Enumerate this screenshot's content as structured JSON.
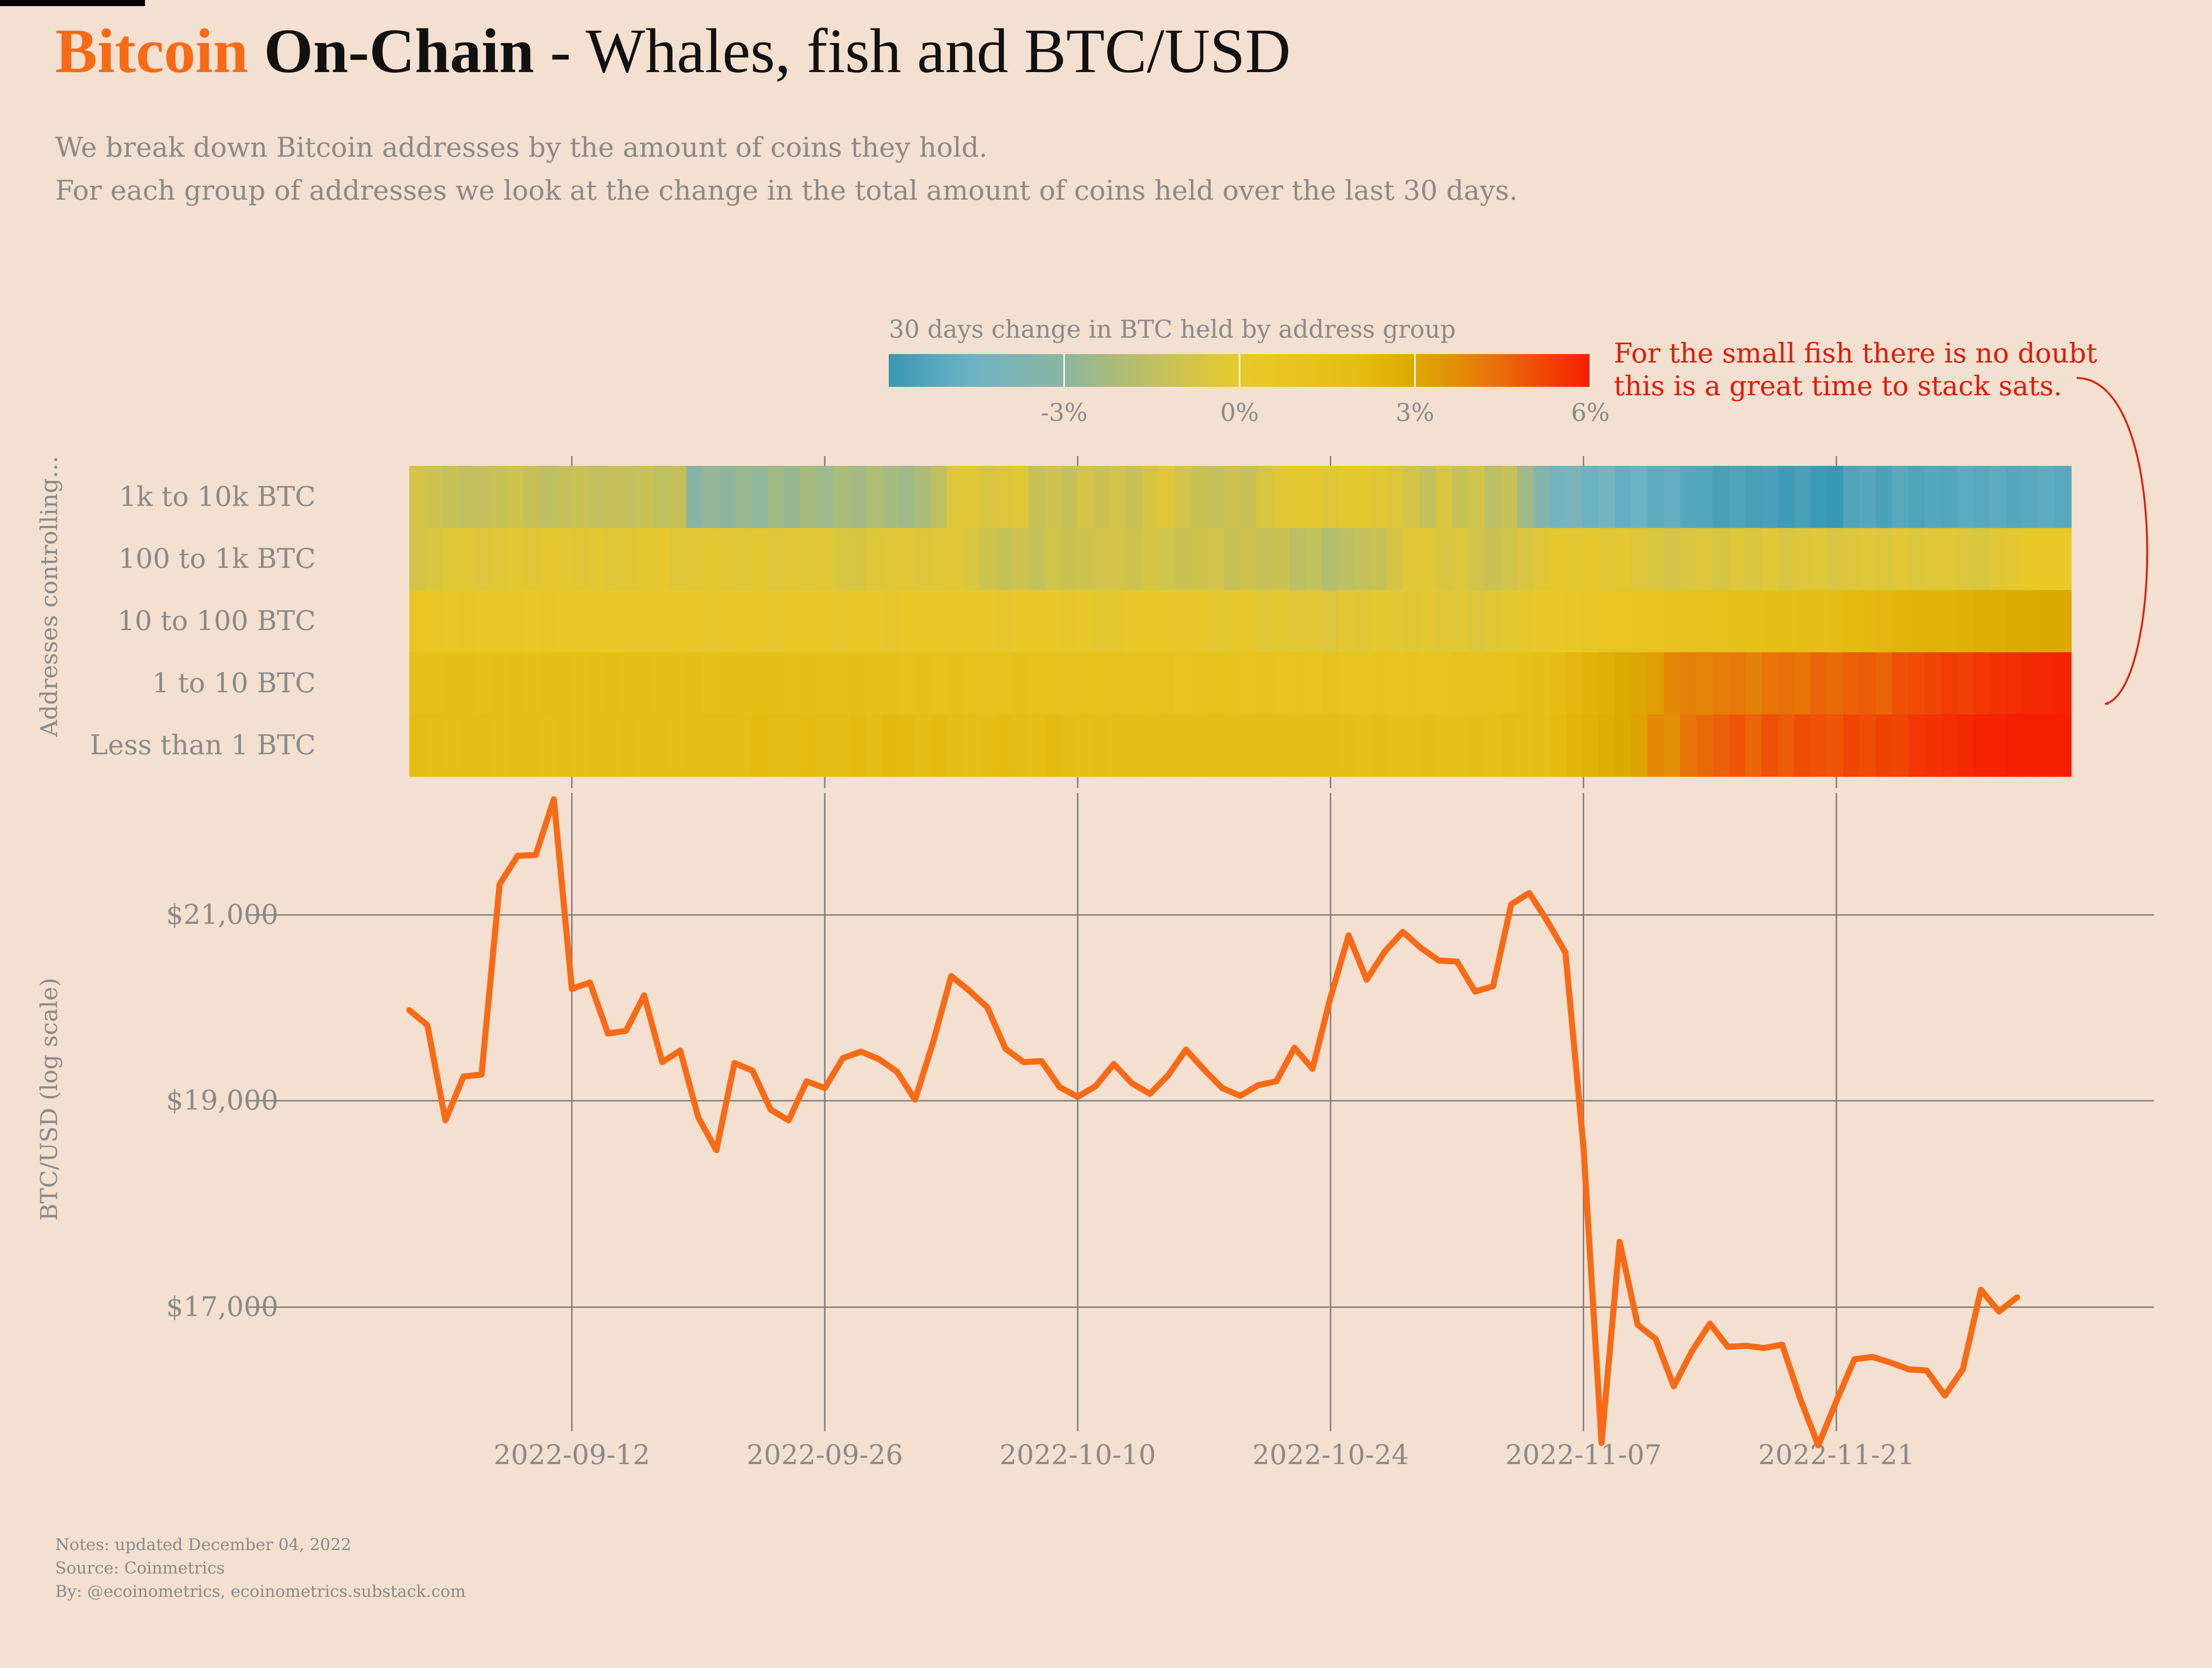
{
  "title": {
    "part1": "Bitcoin",
    "part2": "On-Chain",
    "part3": " - Whales, fish and BTC/USD"
  },
  "subtitle": {
    "line1": "We break down Bitcoin addresses by the amount of coins they hold.",
    "line2": "For each group of addresses we look at the change in the total amount of coins held over the last 30 days."
  },
  "notes": {
    "line1": "Notes: updated December 04, 2022",
    "line2": "Source: Coinmetrics",
    "line3": "By: @ecoinometrics, ecoinometrics.substack.com"
  },
  "colors": {
    "background": "#f3e0d0",
    "btc_line": "#f86a16",
    "annotation": "#e01b0c",
    "muted_text": "#8a8a8a",
    "gridline": "#7d7d7d"
  },
  "chart_data": [
    {
      "type": "heatmap",
      "colorbar_title": "30 days change in BTC held by address group",
      "colorbar_ticks": [
        {
          "value": -3,
          "label": "-3%"
        },
        {
          "value": 0,
          "label": "0%"
        },
        {
          "value": 3,
          "label": "3%"
        },
        {
          "value": 6,
          "label": "6%"
        }
      ],
      "colorbar_range": [
        -6,
        6
      ],
      "colorscale": [
        {
          "value": -6,
          "color": "#3998b4"
        },
        {
          "value": -4.5,
          "color": "#6fb4c4"
        },
        {
          "value": -3,
          "color": "#8db5a0"
        },
        {
          "value": -1.5,
          "color": "#bfc060"
        },
        {
          "value": 0,
          "color": "#e9c92a"
        },
        {
          "value": 2,
          "color": "#e6bd14"
        },
        {
          "value": 3,
          "color": "#dcaa02"
        },
        {
          "value": 4.3,
          "color": "#e8740a"
        },
        {
          "value": 6,
          "color": "#f61e02"
        }
      ],
      "ylabel": "Addresses controlling...",
      "rows": [
        {
          "label": "1k to 10k BTC",
          "values": [
            -0.8,
            -1,
            -1.2,
            -1.5,
            -1.4,
            -1.2,
            -1.0,
            -1.3,
            -1.6,
            -1.4,
            -1.2,
            -1.5,
            -1.3,
            -1.4,
            -1.2,
            -1.5,
            -1.3,
            -3.2,
            -2.8,
            -3.0,
            -2.6,
            -2.9,
            -2.4,
            -2.7,
            -2.2,
            -2.5,
            -2.1,
            -2.3,
            -2.0,
            -2.2,
            -2.4,
            -2.1,
            -1.5,
            -0.4,
            -0.3,
            -0.6,
            -0.5,
            -0.4,
            -1.2,
            -1.0,
            -1.3,
            -0.8,
            -1.1,
            -0.9,
            -1.2,
            -0.7,
            -0.3,
            -0.9,
            -1.2,
            -1.4,
            -1.0,
            -1.2,
            -0.6,
            -0.3,
            -0.2,
            -0.1,
            -0.4,
            -0.2,
            -0.1,
            -0.3,
            -0.5,
            -0.8,
            -1.4,
            -0.6,
            -1.2,
            -0.9,
            -1.6,
            -1.2,
            -2.4,
            -3.5,
            -4.3,
            -4.0,
            -4.6,
            -4.3,
            -4.8,
            -4.6,
            -5.0,
            -4.8,
            -5.2,
            -5.3,
            -5.6,
            -5.4,
            -5.6,
            -5.5,
            -5.8,
            -5.6,
            -5.9,
            -6.0,
            -5.4,
            -5.2,
            -5.5,
            -5.1,
            -5.4,
            -5.2,
            -5.3,
            -5.0,
            -5.1,
            -5.0,
            -5.2,
            -5.1,
            -5.0,
            -5.1
          ]
        },
        {
          "label": "100 to 1k BTC",
          "values": [
            -0.8,
            -0.6,
            -0.4,
            -0.3,
            -0.5,
            -0.4,
            -0.2,
            -0.3,
            -0.1,
            -0.2,
            -0.3,
            -0.2,
            -0.4,
            -0.3,
            -0.2,
            -0.1,
            -0.4,
            -0.3,
            -0.2,
            -0.3,
            -0.4,
            -0.2,
            -0.5,
            -0.3,
            -0.4,
            -0.3,
            -0.6,
            -0.7,
            -0.5,
            -0.4,
            -0.3,
            -0.5,
            -0.4,
            -0.3,
            -0.6,
            -1.0,
            -1.2,
            -1.0,
            -1.3,
            -0.9,
            -1.1,
            -1.0,
            -0.9,
            -0.8,
            -1.0,
            -0.7,
            -0.9,
            -1.1,
            -1.0,
            -0.9,
            -1.2,
            -1.0,
            -1.3,
            -1.1,
            -1.6,
            -1.4,
            -1.8,
            -1.6,
            -1.4,
            -1.2,
            -0.8,
            -0.4,
            -0.3,
            -0.6,
            -0.5,
            -0.9,
            -1.1,
            -0.9,
            -0.6,
            -0.3,
            -0.1,
            -0.2,
            -0.1,
            -0.3,
            -0.2,
            -0.5,
            -0.6,
            -0.8,
            -0.6,
            -0.5,
            -0.7,
            -0.5,
            -0.6,
            -0.4,
            -0.6,
            -0.5,
            -0.4,
            -0.6,
            -0.5,
            -0.4,
            -0.5,
            -0.3,
            -0.5,
            -0.4,
            -0.3,
            -0.5,
            -0.6,
            -0.3,
            -0.2,
            0.0,
            0.1,
            0.0
          ]
        },
        {
          "label": "10 to 100 BTC",
          "values": [
            0.6,
            0.5,
            0.4,
            0.5,
            0.3,
            0.4,
            0.3,
            0.2,
            0.3,
            0.2,
            0.1,
            0.2,
            0.1,
            0.0,
            0.1,
            0.0,
            0.1,
            0.0,
            -0.1,
            0.0,
            0.1,
            0.0,
            -0.1,
            0.0,
            0.1,
            0.0,
            -0.1,
            0.1,
            0.0,
            -0.1,
            0.1,
            0.0,
            0.1,
            0.2,
            0.1,
            0.0,
            -0.1,
            0.0,
            0.1,
            0.0,
            -0.1,
            0.0,
            -0.2,
            -0.1,
            0.0,
            0.1,
            0.0,
            -0.1,
            0.0,
            -0.2,
            -0.1,
            0.0,
            -0.3,
            -0.2,
            -0.4,
            -0.3,
            -0.5,
            -0.2,
            -0.3,
            -0.1,
            -0.2,
            -0.3,
            -0.2,
            -0.4,
            -0.3,
            -0.5,
            -0.3,
            -0.2,
            -0.1,
            0.0,
            0.2,
            0.4,
            0.5,
            0.6,
            0.7,
            0.8,
            0.9,
            1.0,
            1.1,
            1.2,
            1.3,
            1.4,
            1.5,
            1.6,
            1.7,
            1.8,
            1.9,
            2.0,
            2.1,
            2.2,
            2.3,
            2.4,
            2.5,
            2.6,
            2.6,
            2.7,
            2.8,
            2.8,
            2.9,
            2.9,
            3.0,
            3.0
          ]
        },
        {
          "label": "1 to 10 BTC",
          "values": [
            1.5,
            1.4,
            1.6,
            1.7,
            1.5,
            1.6,
            1.8,
            1.7,
            1.9,
            1.8,
            1.7,
            1.9,
            2.0,
            1.8,
            1.9,
            1.7,
            1.6,
            1.8,
            1.5,
            1.7,
            1.6,
            1.8,
            1.7,
            1.5,
            1.6,
            1.4,
            1.5,
            1.6,
            1.4,
            1.5,
            1.3,
            1.4,
            1.2,
            1.4,
            1.3,
            1.1,
            1.2,
            1.4,
            1.2,
            1.3,
            1.1,
            1.2,
            1.3,
            1.1,
            1.0,
            1.2,
            1.1,
            0.9,
            1.0,
            1.2,
            1.0,
            0.9,
            1.1,
            0.8,
            1.0,
            0.9,
            1.1,
            0.9,
            0.8,
            1.0,
            0.9,
            1.0,
            0.8,
            0.9,
            1.1,
            1.0,
            1.2,
            1.3,
            1.5,
            1.7,
            2.0,
            2.3,
            2.5,
            2.7,
            2.9,
            3.1,
            3.3,
            3.8,
            4.0,
            3.9,
            4.1,
            4.2,
            4.0,
            4.3,
            4.4,
            4.3,
            4.6,
            4.5,
            4.7,
            4.8,
            4.6,
            5.0,
            5.1,
            5.2,
            5.4,
            5.3,
            5.5,
            5.6,
            5.7,
            5.8,
            5.8,
            5.9
          ]
        },
        {
          "label": "Less than 1 BTC",
          "values": [
            2.0,
            1.8,
            1.7,
            1.9,
            1.8,
            1.7,
            1.9,
            1.8,
            1.6,
            1.8,
            1.7,
            1.9,
            1.8,
            2.0,
            1.9,
            1.8,
            1.7,
            1.9,
            1.8,
            2.0,
            1.9,
            2.1,
            2.0,
            1.9,
            2.1,
            2.0,
            1.9,
            2.1,
            2.0,
            2.2,
            2.1,
            2.0,
            2.1,
            2.0,
            1.9,
            2.0,
            2.1,
            2.0,
            1.9,
            2.1,
            2.0,
            1.9,
            2.0,
            1.8,
            1.9,
            2.0,
            1.8,
            1.9,
            2.0,
            1.8,
            1.7,
            1.9,
            1.8,
            1.6,
            1.7,
            1.6,
            1.8,
            1.7,
            1.5,
            1.6,
            1.5,
            1.4,
            1.6,
            1.5,
            1.4,
            1.6,
            1.5,
            1.8,
            1.7,
            1.9,
            2.1,
            2.4,
            2.6,
            2.8,
            3.0,
            3.2,
            3.8,
            3.6,
            4.3,
            4.5,
            4.7,
            4.9,
            4.6,
            5.0,
            4.8,
            5.1,
            5.0,
            4.9,
            5.2,
            5.1,
            5.3,
            5.2,
            5.5,
            5.6,
            5.7,
            5.8,
            5.9,
            5.9,
            6.0,
            6.0,
            6.0,
            6.0
          ]
        }
      ]
    },
    {
      "type": "line",
      "ylabel": "BTC/USD (log scale)",
      "yscale": "log",
      "ylim": [
        15900,
        22400
      ],
      "xlim": [
        "2022-09-03",
        "2022-12-04"
      ],
      "yticks": [
        {
          "value": 21000,
          "label": "$21,000"
        },
        {
          "value": 19000,
          "label": "$19,000"
        },
        {
          "value": 17000,
          "label": "$17,000"
        }
      ],
      "xticks": [
        {
          "date": "2022-09-12",
          "label": "2022-09-12"
        },
        {
          "date": "2022-09-26",
          "label": "2022-09-26"
        },
        {
          "date": "2022-10-10",
          "label": "2022-10-10"
        },
        {
          "date": "2022-10-24",
          "label": "2022-10-24"
        },
        {
          "date": "2022-11-07",
          "label": "2022-11-07"
        },
        {
          "date": "2022-11-21",
          "label": "2022-11-21"
        }
      ],
      "grid": true,
      "series": [
        {
          "start_date": "2022-09-03",
          "interval": "day",
          "values": [
            19950,
            19790,
            18800,
            19250,
            19270,
            21350,
            21680,
            21690,
            22350,
            20180,
            20250,
            19700,
            19730,
            20110,
            19400,
            19520,
            18830,
            18500,
            19390,
            19310,
            18910,
            18800,
            19200,
            19130,
            19440,
            19510,
            19430,
            19300,
            19010,
            19610,
            20320,
            20160,
            19980,
            19540,
            19400,
            19410,
            19140,
            19040,
            19150,
            19380,
            19180,
            19070,
            19260,
            19530,
            19320,
            19130,
            19050,
            19160,
            19200,
            19550,
            19330,
            20090,
            20770,
            20280,
            20590,
            20810,
            20630,
            20490,
            20480,
            20150,
            20210,
            21120,
            21250,
            20930,
            20580,
            18530,
            15800,
            17610,
            16840,
            16710,
            16290,
            16600,
            16850,
            16640,
            16650,
            16630,
            16660,
            16180,
            15780,
            16160,
            16530,
            16550,
            16500,
            16440,
            16430,
            16210,
            16440,
            17160,
            16960,
            17090
          ]
        }
      ]
    }
  ],
  "annotation": {
    "line1": "For the small fish there is no doubt",
    "line2": "this is a great time to stack sats."
  }
}
